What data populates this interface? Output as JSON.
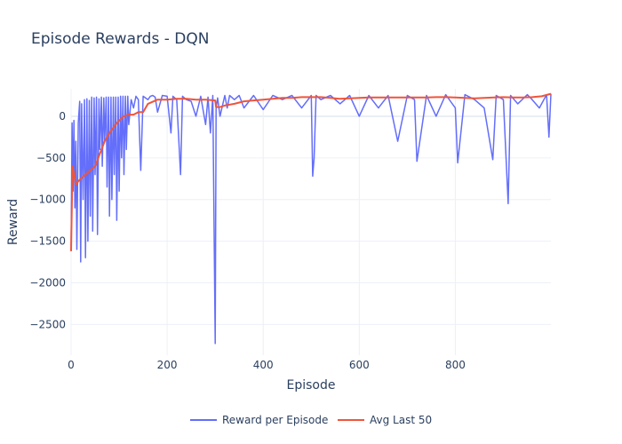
{
  "chart_data": {
    "type": "line",
    "title": "Episode Rewards - DQN",
    "xlabel": "Episode",
    "ylabel": "Reward",
    "xlim": [
      0,
      999
    ],
    "ylim": [
      -2870,
      330
    ],
    "x_ticks": [
      0,
      200,
      400,
      600,
      800
    ],
    "y_ticks": [
      0,
      -500,
      -1000,
      -1500,
      -2000,
      -2500
    ],
    "grid": true,
    "legend_position": "bottom-center",
    "colors": {
      "reward": "#636efa",
      "avg": "#ef553b",
      "grid": "#ebf0f8"
    },
    "series": [
      {
        "name": "Reward per Episode",
        "x": [
          0,
          2,
          4,
          6,
          8,
          10,
          12,
          15,
          18,
          20,
          22,
          25,
          28,
          30,
          33,
          35,
          38,
          40,
          43,
          45,
          48,
          50,
          53,
          55,
          58,
          60,
          63,
          65,
          68,
          70,
          73,
          75,
          78,
          80,
          83,
          85,
          88,
          90,
          93,
          95,
          98,
          100,
          103,
          105,
          108,
          110,
          113,
          115,
          118,
          120,
          125,
          130,
          135,
          140,
          145,
          150,
          160,
          165,
          170,
          175,
          180,
          190,
          200,
          208,
          212,
          220,
          228,
          232,
          240,
          250,
          260,
          270,
          280,
          285,
          290,
          295,
          300,
          302,
          305,
          310,
          320,
          325,
          330,
          340,
          350,
          360,
          380,
          400,
          420,
          440,
          460,
          480,
          500,
          503,
          506,
          510,
          520,
          540,
          560,
          580,
          600,
          620,
          640,
          660,
          680,
          700,
          715,
          720,
          740,
          760,
          780,
          800,
          805,
          820,
          840,
          860,
          878,
          885,
          900,
          910,
          915,
          930,
          950,
          960,
          975,
          990,
          995,
          999
        ],
        "values": [
          -1620,
          -80,
          -900,
          -50,
          -1100,
          -300,
          -1600,
          -80,
          180,
          -1750,
          150,
          -1000,
          200,
          -1700,
          210,
          -1500,
          190,
          -1200,
          230,
          -1380,
          220,
          -700,
          230,
          -1420,
          210,
          -400,
          230,
          -600,
          220,
          -300,
          230,
          -850,
          230,
          -1200,
          230,
          -1000,
          230,
          -700,
          230,
          -1250,
          230,
          -900,
          240,
          -500,
          240,
          -700,
          240,
          -400,
          240,
          -100,
          200,
          100,
          240,
          200,
          -650,
          240,
          200,
          240,
          250,
          230,
          50,
          250,
          240,
          -200,
          240,
          200,
          -700,
          240,
          200,
          180,
          0,
          240,
          -100,
          230,
          -200,
          250,
          -2730,
          100,
          220,
          0,
          250,
          100,
          250,
          200,
          250,
          100,
          250,
          80,
          250,
          200,
          250,
          100,
          250,
          -720,
          -500,
          250,
          200,
          250,
          150,
          250,
          0,
          250,
          100,
          250,
          -300,
          250,
          200,
          -540,
          250,
          0,
          260,
          100,
          -560,
          260,
          200,
          100,
          -520,
          250,
          200,
          -1050,
          250,
          150,
          260,
          200,
          100,
          260,
          -250,
          270
        ]
      },
      {
        "name": "Avg Last 50",
        "x": [
          0,
          3,
          6,
          10,
          15,
          20,
          30,
          40,
          50,
          60,
          70,
          80,
          90,
          100,
          110,
          120,
          130,
          140,
          150,
          160,
          180,
          200,
          220,
          240,
          260,
          280,
          300,
          302,
          310,
          320,
          340,
          360,
          380,
          400,
          420,
          440,
          460,
          480,
          500,
          520,
          540,
          560,
          580,
          600,
          620,
          640,
          660,
          680,
          700,
          720,
          740,
          760,
          780,
          800,
          820,
          840,
          860,
          880,
          900,
          920,
          940,
          960,
          980,
          999
        ],
        "values": [
          -1620,
          -600,
          -680,
          -820,
          -780,
          -750,
          -700,
          -650,
          -600,
          -450,
          -300,
          -200,
          -120,
          -50,
          0,
          20,
          20,
          50,
          50,
          150,
          200,
          200,
          210,
          210,
          200,
          200,
          190,
          110,
          110,
          130,
          150,
          180,
          190,
          200,
          210,
          220,
          220,
          230,
          230,
          230,
          220,
          210,
          215,
          220,
          225,
          225,
          225,
          225,
          225,
          225,
          225,
          230,
          230,
          225,
          220,
          215,
          220,
          225,
          230,
          225,
          225,
          230,
          240,
          270
        ]
      }
    ]
  }
}
